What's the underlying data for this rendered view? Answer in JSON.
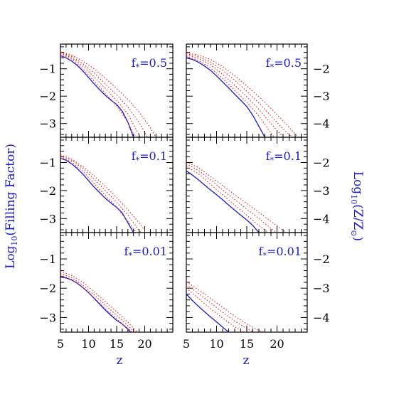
{
  "figure": {
    "left_ylabel_main": "Log",
    "left_ylabel_sub": "10",
    "left_ylabel_rest": "(Filling Factor)",
    "right_ylabel_main": "Log",
    "right_ylabel_sub": "10",
    "right_ylabel_rest_a": "(Z/Z",
    "right_ylabel_sub2": "⊙",
    "right_ylabel_rest_b": ")",
    "xlabel": "z",
    "colors": {
      "model": "#1a1acc",
      "variants": "#e0221e",
      "label": "#1a1acc",
      "axis": "#000000"
    }
  },
  "chart_data": [
    {
      "type": "line",
      "panel": "left-top",
      "annotation_main": "f",
      "annotation_sub": "*",
      "annotation_rest": "=0.5",
      "xlim": [
        5,
        25
      ],
      "ylim": [
        -3.5,
        -0.1
      ],
      "xticks": [
        5,
        10,
        15,
        20
      ],
      "yticks": [
        -1,
        -2,
        -3
      ],
      "series": [
        {
          "style": "solid",
          "x": [
            5,
            6,
            7,
            8,
            9,
            10,
            11,
            12,
            13,
            14,
            15,
            16,
            17,
            18
          ],
          "y": [
            -0.52,
            -0.6,
            -0.72,
            -0.88,
            -1.08,
            -1.32,
            -1.55,
            -1.77,
            -1.97,
            -2.15,
            -2.3,
            -2.55,
            -2.95,
            -3.5
          ]
        },
        {
          "style": "dotted",
          "x": [
            5,
            7,
            9,
            11,
            13,
            15,
            17,
            18.3
          ],
          "y": [
            -0.45,
            -0.65,
            -1.0,
            -1.45,
            -1.9,
            -2.35,
            -2.95,
            -3.5
          ]
        },
        {
          "style": "dotted",
          "x": [
            5,
            7,
            9,
            11,
            13,
            15,
            17,
            19.2
          ],
          "y": [
            -0.42,
            -0.6,
            -0.9,
            -1.3,
            -1.72,
            -2.15,
            -2.65,
            -3.5
          ]
        },
        {
          "style": "dotted",
          "x": [
            5,
            7,
            9,
            11,
            13,
            15,
            17,
            19,
            20.5
          ],
          "y": [
            -0.4,
            -0.55,
            -0.82,
            -1.15,
            -1.55,
            -1.95,
            -2.4,
            -2.95,
            -3.5
          ]
        },
        {
          "style": "dotted",
          "x": [
            5,
            7,
            9,
            11,
            13,
            15,
            17,
            19,
            21,
            22
          ],
          "y": [
            -0.38,
            -0.5,
            -0.72,
            -1.0,
            -1.35,
            -1.72,
            -2.12,
            -2.58,
            -3.15,
            -3.5
          ]
        }
      ]
    },
    {
      "type": "line",
      "panel": "right-top",
      "annotation_main": "f",
      "annotation_sub": "*",
      "annotation_rest": "=0.5",
      "xlim": [
        5,
        25
      ],
      "ylim": [
        -4.5,
        -1.1
      ],
      "xticks": [
        5,
        10,
        15,
        20
      ],
      "yticks": [
        -2,
        -3,
        -4
      ],
      "series": [
        {
          "style": "solid",
          "x": [
            5,
            6,
            7,
            8,
            9,
            10,
            11,
            12,
            13,
            14,
            15,
            16,
            17,
            18
          ],
          "y": [
            -1.6,
            -1.66,
            -1.76,
            -1.9,
            -2.06,
            -2.26,
            -2.48,
            -2.7,
            -2.93,
            -3.15,
            -3.38,
            -3.7,
            -4.1,
            -4.5
          ]
        },
        {
          "style": "dotted",
          "x": [
            5,
            7,
            9,
            11,
            13,
            15,
            17,
            19.5
          ],
          "y": [
            -1.55,
            -1.7,
            -1.97,
            -2.35,
            -2.78,
            -3.22,
            -3.72,
            -4.5
          ]
        },
        {
          "style": "dotted",
          "x": [
            5,
            7,
            9,
            11,
            13,
            15,
            17,
            19,
            21
          ],
          "y": [
            -1.5,
            -1.62,
            -1.85,
            -2.2,
            -2.6,
            -3.02,
            -3.48,
            -4.0,
            -4.5
          ]
        },
        {
          "style": "dotted",
          "x": [
            5,
            7,
            9,
            11,
            13,
            15,
            17,
            19,
            21,
            22.5
          ],
          "y": [
            -1.45,
            -1.56,
            -1.76,
            -2.06,
            -2.42,
            -2.82,
            -3.25,
            -3.72,
            -4.2,
            -4.5
          ]
        },
        {
          "style": "dotted",
          "x": [
            5,
            7,
            9,
            11,
            13,
            15,
            17,
            19,
            21,
            23.5
          ],
          "y": [
            -1.42,
            -1.5,
            -1.66,
            -1.92,
            -2.25,
            -2.62,
            -3.02,
            -3.45,
            -3.9,
            -4.5
          ]
        }
      ]
    },
    {
      "type": "line",
      "panel": "left-middle",
      "annotation_main": "f",
      "annotation_sub": "*",
      "annotation_rest": "=0.1",
      "xlim": [
        5,
        25
      ],
      "ylim": [
        -3.5,
        -0.1
      ],
      "xticks": [
        5,
        10,
        15,
        20
      ],
      "yticks": [
        -1,
        -2,
        -3
      ],
      "series": [
        {
          "style": "solid",
          "x": [
            5,
            6,
            7,
            8,
            9,
            10,
            11,
            12,
            13,
            14,
            15,
            16,
            17,
            18
          ],
          "y": [
            -0.85,
            -0.92,
            -1.05,
            -1.22,
            -1.42,
            -1.65,
            -1.88,
            -2.08,
            -2.28,
            -2.45,
            -2.6,
            -2.8,
            -3.15,
            -3.5
          ]
        },
        {
          "style": "dotted",
          "x": [
            5,
            7,
            9,
            11,
            13,
            15,
            17,
            18.5
          ],
          "y": [
            -0.8,
            -0.98,
            -1.32,
            -1.75,
            -2.18,
            -2.6,
            -3.1,
            -3.5
          ]
        },
        {
          "style": "dotted",
          "x": [
            5,
            7,
            9,
            11,
            13,
            15,
            17,
            19.3
          ],
          "y": [
            -0.76,
            -0.92,
            -1.22,
            -1.6,
            -2.0,
            -2.42,
            -2.88,
            -3.5
          ]
        },
        {
          "style": "dotted",
          "x": [
            5,
            7,
            9,
            11,
            13,
            15,
            17,
            19,
            20.3
          ],
          "y": [
            -0.73,
            -0.88,
            -1.15,
            -1.48,
            -1.85,
            -2.25,
            -2.68,
            -3.15,
            -3.5
          ]
        }
      ]
    },
    {
      "type": "line",
      "panel": "right-middle",
      "annotation_main": "f",
      "annotation_sub": "*",
      "annotation_rest": "=0.1",
      "xlim": [
        5,
        25
      ],
      "ylim": [
        -4.5,
        -1.1
      ],
      "xticks": [
        5,
        10,
        15,
        20
      ],
      "yticks": [
        -2,
        -3,
        -4
      ],
      "series": [
        {
          "style": "solid",
          "x": [
            5,
            6,
            7,
            8,
            9,
            10,
            11,
            12,
            13,
            14,
            15,
            16,
            17
          ],
          "y": [
            -2.3,
            -2.45,
            -2.62,
            -2.8,
            -2.98,
            -3.15,
            -3.33,
            -3.52,
            -3.7,
            -3.88,
            -4.05,
            -4.25,
            -4.5
          ]
        },
        {
          "style": "dotted",
          "x": [
            5,
            7,
            9,
            11,
            13,
            15,
            17,
            18.5
          ],
          "y": [
            -2.15,
            -2.4,
            -2.78,
            -3.15,
            -3.52,
            -3.88,
            -4.25,
            -4.5
          ]
        },
        {
          "style": "dotted",
          "x": [
            5,
            7,
            9,
            11,
            13,
            15,
            17,
            19,
            20
          ],
          "y": [
            -2.05,
            -2.28,
            -2.62,
            -2.98,
            -3.32,
            -3.66,
            -4.0,
            -4.35,
            -4.5
          ]
        },
        {
          "style": "dotted",
          "x": [
            5,
            7,
            9,
            11,
            13,
            15,
            17,
            19,
            21.5
          ],
          "y": [
            -1.98,
            -2.18,
            -2.5,
            -2.82,
            -3.15,
            -3.46,
            -3.78,
            -4.1,
            -4.5
          ]
        }
      ]
    },
    {
      "type": "line",
      "panel": "left-bottom",
      "annotation_main": "f",
      "annotation_sub": "*",
      "annotation_rest": "=0.01",
      "xlim": [
        5,
        25
      ],
      "ylim": [
        -3.5,
        -0.1
      ],
      "xticks": [
        5,
        10,
        15,
        20
      ],
      "yticks": [
        -1,
        -2,
        -3
      ],
      "series": [
        {
          "style": "solid",
          "x": [
            5,
            6,
            7,
            8,
            9,
            10,
            11,
            12,
            13,
            14,
            15,
            16,
            17,
            17.5
          ],
          "y": [
            -1.62,
            -1.65,
            -1.72,
            -1.83,
            -1.98,
            -2.15,
            -2.35,
            -2.55,
            -2.75,
            -2.93,
            -3.1,
            -3.22,
            -3.4,
            -3.5
          ]
        },
        {
          "style": "dotted",
          "x": [
            5,
            7,
            9,
            11,
            13,
            15,
            17,
            17.8
          ],
          "y": [
            -1.55,
            -1.7,
            -1.98,
            -2.33,
            -2.7,
            -3.05,
            -3.38,
            -3.5
          ]
        },
        {
          "style": "dotted",
          "x": [
            5,
            7,
            9,
            11,
            13,
            15,
            17,
            18.2
          ],
          "y": [
            -1.5,
            -1.64,
            -1.9,
            -2.23,
            -2.58,
            -2.93,
            -3.28,
            -3.5
          ]
        },
        {
          "style": "dotted",
          "x": [
            5,
            7,
            9,
            11,
            13,
            15,
            17,
            18.7
          ],
          "y": [
            -1.42,
            -1.56,
            -1.8,
            -2.12,
            -2.46,
            -2.8,
            -3.16,
            -3.5
          ]
        }
      ]
    },
    {
      "type": "line",
      "panel": "right-bottom",
      "annotation_main": "f",
      "annotation_sub": "*",
      "annotation_rest": "=0.01",
      "xlim": [
        5,
        25
      ],
      "ylim": [
        -4.5,
        -1.1
      ],
      "xticks": [
        5,
        10,
        15,
        20
      ],
      "yticks": [
        -2,
        -3,
        -4
      ],
      "series": [
        {
          "style": "solid",
          "x": [
            5,
            6,
            7,
            8,
            9,
            10,
            11,
            12
          ],
          "y": [
            -3.2,
            -3.42,
            -3.62,
            -3.8,
            -3.98,
            -4.15,
            -4.33,
            -4.5
          ]
        },
        {
          "style": "dotted",
          "x": [
            5,
            7,
            9,
            11,
            13,
            14.5
          ],
          "y": [
            -3.0,
            -3.35,
            -3.7,
            -4.02,
            -4.32,
            -4.5
          ]
        },
        {
          "style": "dotted",
          "x": [
            5,
            7,
            9,
            11,
            13,
            15,
            16.2
          ],
          "y": [
            -2.88,
            -3.18,
            -3.5,
            -3.82,
            -4.12,
            -4.38,
            -4.5
          ]
        },
        {
          "style": "dotted",
          "x": [
            5,
            7,
            9,
            11,
            13,
            15,
            17,
            18
          ],
          "y": [
            -2.78,
            -3.05,
            -3.35,
            -3.65,
            -3.95,
            -4.22,
            -4.45,
            -4.5
          ]
        }
      ]
    }
  ]
}
